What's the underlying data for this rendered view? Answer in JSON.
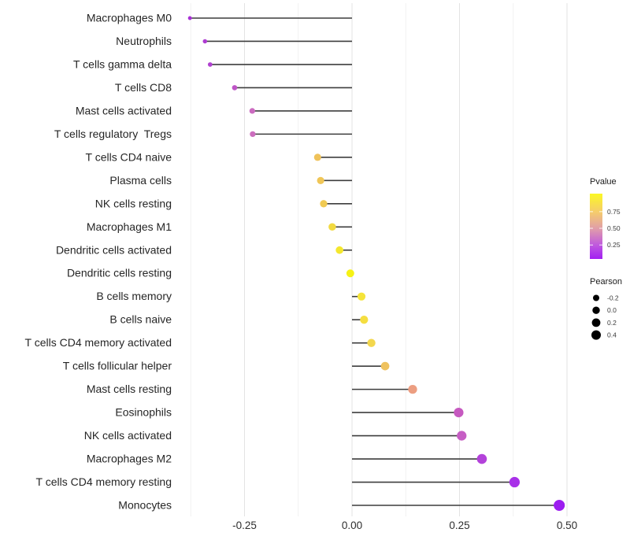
{
  "chart_data": {
    "type": "lollipop",
    "title": "",
    "xlabel": "",
    "ylabel": "",
    "xlim": [
      -0.41,
      0.53
    ],
    "x_ticks": [
      -0.25,
      0.0,
      0.25,
      0.5
    ],
    "x_tick_labels": [
      "-0.25",
      "0.00",
      "0.25",
      "0.50"
    ],
    "grid_major": [
      -0.25,
      0.0,
      0.25,
      0.5
    ],
    "grid_minor": [
      -0.375,
      -0.125,
      0.125,
      0.375
    ],
    "grid": "vertical gridlines only, light gray, white background",
    "legend_position": "right",
    "categories": [
      "Macrophages M0",
      "Neutrophils",
      "T cells gamma delta",
      "T cells CD8",
      "Mast cells activated",
      "T cells regulatory  Tregs",
      "T cells CD4 naive",
      "Plasma cells",
      "NK cells resting",
      "Macrophages M1",
      "Dendritic cells activated",
      "Dendritic cells resting",
      "B cells memory",
      "B cells naive",
      "T cells CD4 memory activated",
      "T cells follicular helper",
      "Mast cells resting",
      "Eosinophils",
      "NK cells activated",
      "Macrophages M2",
      "T cells CD4 memory resting",
      "Monocytes"
    ],
    "series": [
      {
        "name": "Pearson correlation",
        "values": [
          -0.377,
          -0.342,
          -0.33,
          -0.273,
          -0.232,
          -0.231,
          -0.08,
          -0.073,
          -0.066,
          -0.046,
          -0.029,
          -0.004,
          0.022,
          0.028,
          0.045,
          0.077,
          0.141,
          0.248,
          0.255,
          0.302,
          0.378,
          0.482
        ]
      }
    ],
    "dot_colors": [
      "#A82FD6",
      "#AE3CD2",
      "#B041D0",
      "#BE55C6",
      "#CB6BC0",
      "#CC6EBE",
      "#EFC25A",
      "#F0C657",
      "#F0CA53",
      "#F2DA41",
      "#F4E72E",
      "#F6F215",
      "#F5E43A",
      "#F5DE40",
      "#F3D74D",
      "#EFC25E",
      "#EC9E81",
      "#C659C0",
      "#C65EC4",
      "#B342DA",
      "#A831E8",
      "#9C1DF0"
    ],
    "stem_color": "#3d3d3d"
  },
  "legend_pvalue": {
    "title": "Pvalue",
    "tick_values": [
      0.75,
      0.5,
      0.25
    ],
    "tick_labels": [
      "0.75",
      "0.50",
      "0.25"
    ],
    "scale_range": [
      0.04,
      1.02
    ],
    "gradient_top_to_bottom": [
      "#FBF824",
      "#F5CC6C",
      "#E19FA8",
      "#BF58DF",
      "#A21FF2"
    ]
  },
  "legend_pearson": {
    "title": "Pearson",
    "items": [
      {
        "label": "-0.2",
        "d": 8
      },
      {
        "label": "0.0",
        "d": 9.4
      },
      {
        "label": "0.2",
        "d": 10.8
      },
      {
        "label": "0.4",
        "d": 12
      }
    ],
    "dot_color": "#000000"
  },
  "colors": {
    "background": "#ffffff",
    "grid_major": "#e3e3e3",
    "grid_minor": "#f1f1f1",
    "axis_text": "#2e2e2e"
  }
}
